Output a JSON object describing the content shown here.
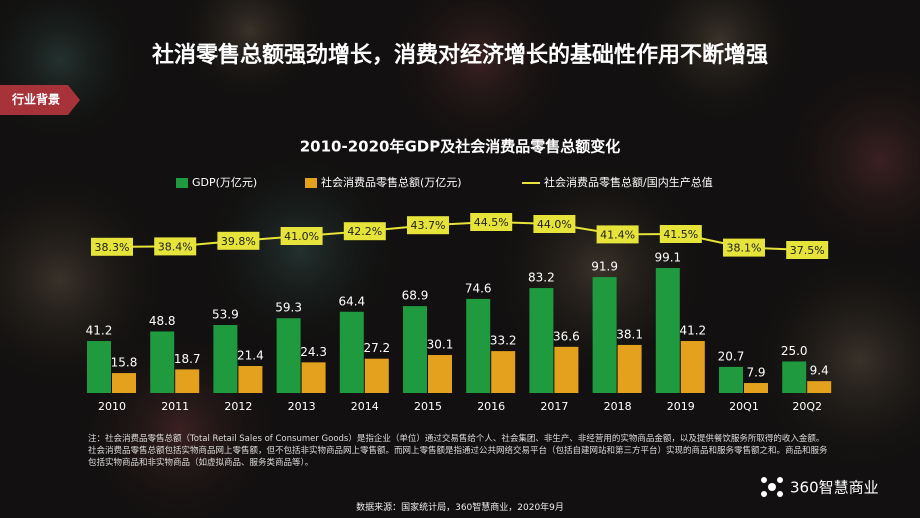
{
  "title": "社消零售总额强劲增长，消费对经济增长的基础性作用不断增强",
  "tag": "行业背景",
  "chart_data": {
    "type": "bar",
    "title": "2010-2020年GDP及社会消费品零售总额变化",
    "categories": [
      "2010",
      "2011",
      "2012",
      "2013",
      "2014",
      "2015",
      "2016",
      "2017",
      "2018",
      "2019",
      "20Q1",
      "20Q2"
    ],
    "series": [
      {
        "name": "GDP(万亿元)",
        "color": "#1f9a3e",
        "values": [
          41.2,
          48.8,
          53.9,
          59.3,
          64.4,
          68.9,
          74.6,
          83.2,
          91.9,
          99.1,
          20.7,
          25.0
        ],
        "value_labels": [
          "41.2",
          "48.8",
          "53.9",
          "59.3",
          "64.4",
          "68.9",
          "74.6",
          "83.2",
          "91.9",
          "99.1",
          "20.7",
          "25.0"
        ]
      },
      {
        "name": "社会消费品零售总额(万亿元)",
        "color": "#e3a11e",
        "values": [
          15.8,
          18.7,
          21.4,
          24.3,
          27.2,
          30.1,
          33.2,
          36.6,
          38.1,
          41.2,
          7.9,
          9.4
        ],
        "value_labels": [
          "15.8",
          "18.7",
          "21.4",
          "24.3",
          "27.2",
          "30.1",
          "33.2",
          "36.6",
          "38.1",
          "41.2",
          "7.9",
          "9.4"
        ]
      },
      {
        "name": "社会消费品零售总额/国内生产总值",
        "color": "#e6e33a",
        "type": "line",
        "values": [
          38.3,
          38.4,
          39.8,
          41.0,
          42.2,
          43.7,
          44.5,
          44.0,
          41.4,
          41.5,
          38.1,
          37.5
        ],
        "value_labels": [
          "38.3%",
          "38.4%",
          "39.8%",
          "41.0%",
          "42.2%",
          "43.7%",
          "44.5%",
          "44.0%",
          "41.4%",
          "41.5%",
          "38.1%",
          "37.5%"
        ]
      }
    ]
  },
  "note": "注：社会消费品零售总额（Total Retail Sales of Consumer Goods）是指企业（单位）通过交易售给个人、社会集团、非生产、非经营用的实物商品金额，以及提供餐饮服务所取得的收入金额。社会消费品零售总额包括实物商品网上零售额，但不包括非实物商品网上零售额。而网上零售额是指通过公共网络交易平台（包括自建网站和第三方平台）实现的商品和服务零售额之和。商品和服务包括实物商品和非实物商品（如虚拟商品、服务类商品等）。",
  "source": "数据来源：国家统计局，360智慧商业，2020年9月",
  "logo": "360智慧商业"
}
